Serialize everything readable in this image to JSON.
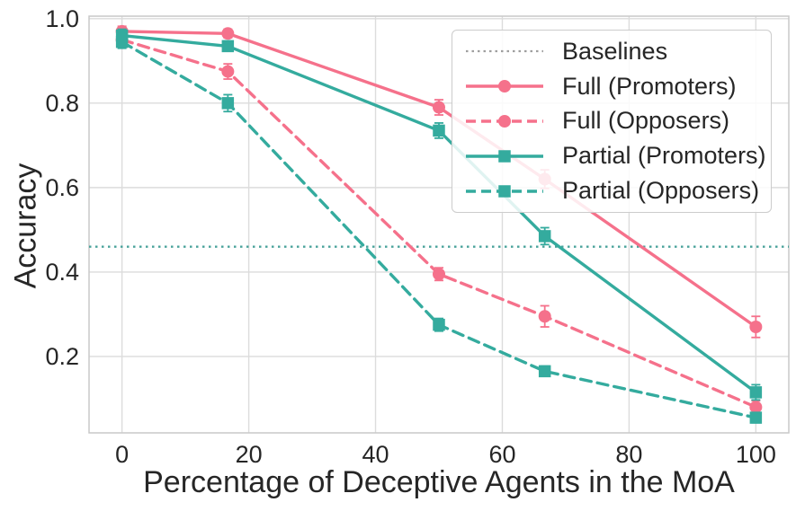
{
  "chart_data": {
    "type": "line",
    "title": "",
    "xlabel": "Percentage of Deceptive Agents in the MoA",
    "ylabel": "Accuracy",
    "xlim": [
      -5.2,
      105.2
    ],
    "ylim": [
      0.019,
      1.006
    ],
    "x_ticks": [
      0,
      20,
      40,
      60,
      80,
      100
    ],
    "y_ticks": [
      0.2,
      0.4,
      0.6,
      0.8,
      1.0
    ],
    "grid": true,
    "legend_position": "upper right",
    "x": [
      0,
      16.7,
      50,
      66.7,
      100
    ],
    "series": [
      {
        "name": "Full (Promoters)",
        "color": "#f5718b",
        "line_style": "solid",
        "marker": "circle",
        "values": [
          0.97,
          0.965,
          0.79,
          0.62,
          0.27
        ],
        "errors": [
          0.012,
          0.01,
          0.018,
          0.022,
          0.025
        ]
      },
      {
        "name": "Full (Opposers)",
        "color": "#f5718b",
        "line_style": "dashed",
        "marker": "circle",
        "values": [
          0.95,
          0.875,
          0.395,
          0.295,
          0.08
        ],
        "errors": [
          0.012,
          0.018,
          0.015,
          0.025,
          0.015
        ]
      },
      {
        "name": "Partial (Promoters)",
        "color": "#34ab9e",
        "line_style": "solid",
        "marker": "square",
        "values": [
          0.96,
          0.935,
          0.735,
          0.485,
          0.115
        ],
        "errors": [
          0.015,
          0.012,
          0.018,
          0.02,
          0.018
        ]
      },
      {
        "name": "Partial (Opposers)",
        "color": "#34ab9e",
        "line_style": "dashed",
        "marker": "square",
        "values": [
          0.945,
          0.8,
          0.275,
          0.165,
          0.055
        ],
        "errors": [
          0.015,
          0.02,
          0.015,
          0.012,
          0.012
        ]
      }
    ],
    "baseline": {
      "label": "Baselines",
      "value": 0.46,
      "line_style": "dotted",
      "color": "#4aa39b",
      "legend_sample_color": "#9e9e9e"
    },
    "legend_entries": [
      "Baselines",
      "Full (Promoters)",
      "Full (Opposers)",
      "Partial (Promoters)",
      "Partial (Opposers)"
    ]
  },
  "colors": {
    "background": "#ffffff",
    "grid": "#dcdcdc",
    "spine": "#c9c9c9",
    "text": "#262626",
    "legend_border": "#cccccc"
  }
}
